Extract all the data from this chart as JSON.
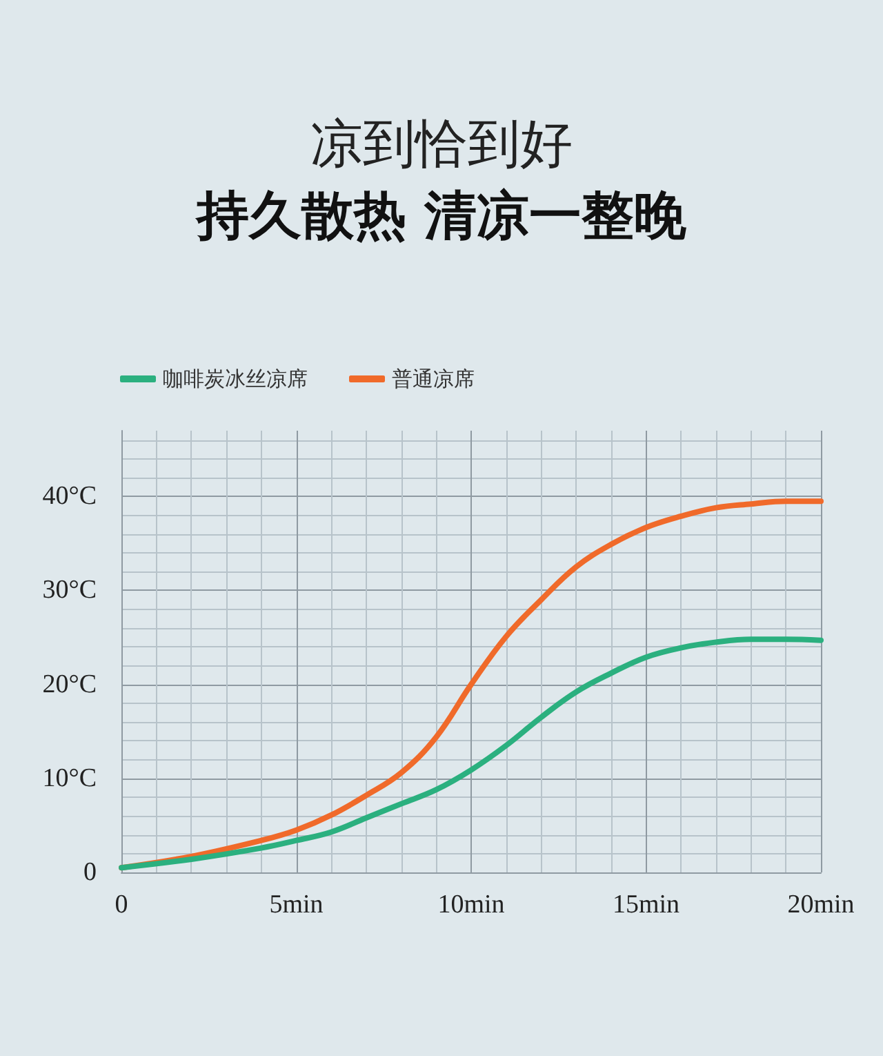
{
  "chart_data": {
    "type": "line",
    "title": "凉到恰到好",
    "subtitle": "持久散热 清凉一整晚",
    "x": [
      0,
      2,
      4,
      5,
      6,
      7,
      8,
      9,
      10,
      11,
      12,
      13,
      14,
      15,
      16,
      17,
      18,
      19,
      20
    ],
    "series": [
      {
        "name": "咖啡炭冰丝凉席",
        "color": "#2bb07f",
        "values": [
          0.5,
          1.4,
          2.6,
          3.4,
          4.3,
          5.8,
          7.3,
          8.8,
          10.9,
          13.5,
          16.5,
          19.2,
          21.2,
          22.9,
          23.9,
          24.5,
          24.8,
          24.8,
          24.7
        ]
      },
      {
        "name": "普通凉席",
        "color": "#f06a2a",
        "values": [
          0.5,
          1.7,
          3.4,
          4.5,
          6.1,
          8.2,
          10.6,
          14.4,
          20,
          25.1,
          29,
          32.5,
          34.9,
          36.7,
          37.9,
          38.8,
          39.2,
          39.5,
          39.5
        ]
      }
    ],
    "xlim": [
      0,
      20
    ],
    "ylim": [
      0,
      47
    ],
    "xticks": [
      0,
      {
        "value": 5,
        "label": "5min"
      },
      {
        "value": 10,
        "label": "10min"
      },
      {
        "value": 15,
        "label": "15min"
      },
      {
        "value": 20,
        "label": "20min"
      }
    ],
    "yticks": [
      0,
      {
        "value": 10,
        "label": "10°C"
      },
      {
        "value": 20,
        "label": "20°C"
      },
      {
        "value": 30,
        "label": "30°C"
      },
      {
        "value": 40,
        "label": "40°C"
      }
    ],
    "grid": true,
    "legend": "top left",
    "line_style": "solid"
  }
}
